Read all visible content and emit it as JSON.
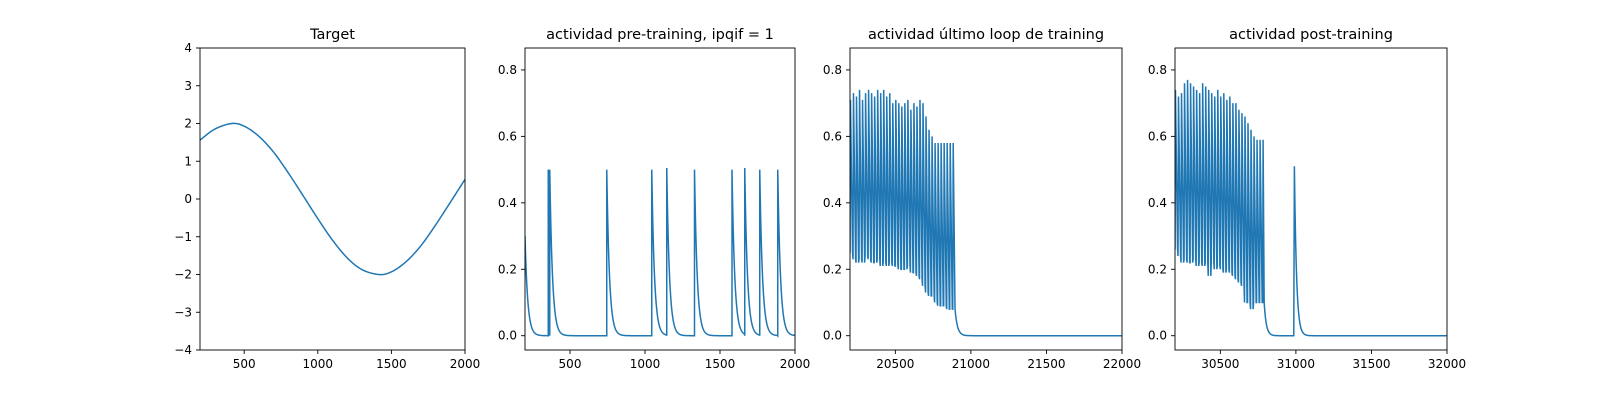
{
  "chart_data": [
    {
      "type": "line",
      "title": "Target",
      "xlabel": "",
      "ylabel": "",
      "xlim": [
        200,
        2000
      ],
      "ylim": [
        -4,
        4
      ],
      "xticks": [
        500,
        1000,
        1500,
        2000
      ],
      "yticks": [
        -4,
        -3,
        -2,
        -1,
        0,
        1,
        2,
        3,
        4
      ],
      "color": "#1f77b4",
      "series": [
        {
          "description": "sinusoid, amplitude 2, peak 2 near x=415, trough -2 near x=1415",
          "x": [
            200,
            300,
            415,
            500,
            600,
            700,
            800,
            900,
            1000,
            1100,
            1200,
            1300,
            1415,
            1500,
            1600,
            1700,
            1800,
            1900,
            2000
          ],
          "y": [
            1.56,
            1.85,
            2.0,
            1.93,
            1.66,
            1.24,
            0.69,
            0.09,
            -0.52,
            -1.09,
            -1.56,
            -1.87,
            -2.0,
            -1.93,
            -1.66,
            -1.24,
            -0.69,
            -0.09,
            0.52
          ]
        }
      ]
    },
    {
      "type": "line",
      "title": "actividad pre-training, ipqif = 1",
      "xlabel": "",
      "ylabel": "",
      "xlim": [
        200,
        2000
      ],
      "ylim": [
        -0.043,
        0.866
      ],
      "xticks": [
        500,
        1000,
        1500,
        2000
      ],
      "yticks": [
        0.0,
        0.2,
        0.4,
        0.6,
        0.8
      ],
      "color": "#1f77b4",
      "spike_times": [
        355,
        365,
        745,
        1045,
        1145,
        1330,
        1580,
        1665,
        1765,
        1885
      ],
      "spike_peaks": [
        0.5,
        0.5,
        0.5,
        0.5,
        0.505,
        0.5,
        0.5,
        0.505,
        0.5,
        0.5
      ],
      "initial_value": 0.3,
      "baseline": 0.0
    },
    {
      "type": "line",
      "title": "actividad último loop de training",
      "xlabel": "",
      "ylabel": "",
      "xlim": [
        20200,
        22000
      ],
      "ylim": [
        -0.043,
        0.866
      ],
      "xticks": [
        20500,
        21000,
        21500,
        22000
      ],
      "yticks": [
        0.0,
        0.2,
        0.4,
        0.6,
        0.8
      ],
      "color": "#1f77b4",
      "oscillation": {
        "start": 20200,
        "period": 20,
        "max": [
          0.71,
          0.73,
          0.72,
          0.74,
          0.71,
          0.73,
          0.74,
          0.73,
          0.72,
          0.74,
          0.73,
          0.74,
          0.72,
          0.73,
          0.7,
          0.71,
          0.7,
          0.69,
          0.7,
          0.71,
          0.68,
          0.7,
          0.69,
          0.71,
          0.7,
          0.66,
          0.62,
          0.6,
          0.58,
          0.58,
          0.58,
          0.58,
          0.58,
          0.58,
          0.58
        ],
        "min": [
          0.25,
          0.23,
          0.22,
          0.23,
          0.22,
          0.24,
          0.23,
          0.22,
          0.22,
          0.23,
          0.21,
          0.22,
          0.21,
          0.22,
          0.21,
          0.21,
          0.2,
          0.2,
          0.2,
          0.21,
          0.19,
          0.19,
          0.18,
          0.17,
          0.15,
          0.13,
          0.12,
          0.12,
          0.1,
          0.09,
          0.09,
          0.09,
          0.08,
          0.08,
          0.08
        ],
        "end": 20895,
        "decay_to": 21000,
        "baseline": 0.0
      }
    },
    {
      "type": "line",
      "title": "actividad post-training",
      "xlabel": "",
      "ylabel": "",
      "xlim": [
        30200,
        32000
      ],
      "ylim": [
        -0.043,
        0.866
      ],
      "xticks": [
        30500,
        31000,
        31500,
        32000
      ],
      "yticks": [
        0.0,
        0.2,
        0.4,
        0.6,
        0.8
      ],
      "color": "#1f77b4",
      "oscillation": {
        "start": 30200,
        "period": 20,
        "max": [
          0.74,
          0.72,
          0.73,
          0.76,
          0.77,
          0.76,
          0.75,
          0.74,
          0.73,
          0.76,
          0.75,
          0.74,
          0.73,
          0.72,
          0.74,
          0.72,
          0.73,
          0.71,
          0.72,
          0.7,
          0.7,
          0.68,
          0.67,
          0.66,
          0.64,
          0.62,
          0.6,
          0.59,
          0.59,
          0.59
        ],
        "min": [
          0.26,
          0.24,
          0.22,
          0.23,
          0.22,
          0.22,
          0.23,
          0.21,
          0.22,
          0.21,
          0.22,
          0.18,
          0.22,
          0.2,
          0.21,
          0.2,
          0.19,
          0.2,
          0.19,
          0.18,
          0.17,
          0.16,
          0.15,
          0.1,
          0.1,
          0.08,
          0.1,
          0.1,
          0.1,
          0.1
        ],
        "end": 30790,
        "extra_spike": {
          "t": 30990,
          "peak": 0.51
        },
        "baseline": 0.0
      }
    }
  ]
}
